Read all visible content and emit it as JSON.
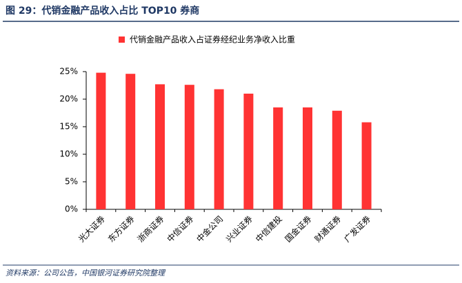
{
  "chart_data": {
    "type": "bar",
    "title": "图 29：代销金融产品收入占比 TOP10 券商",
    "source": "资料来源：公司公告，中国银河证券研究院整理",
    "categories": [
      "光大证券",
      "东方证券",
      "浙商证券",
      "中信证券",
      "中金公司",
      "兴业证券",
      "中信建投",
      "国金证券",
      "财通证券",
      "广发证券"
    ],
    "series": [
      {
        "name": "代销金融产品收入占证券经纪业务净收入比重",
        "color": "#ff3333",
        "values": [
          24.8,
          24.6,
          22.7,
          22.6,
          21.8,
          21.0,
          18.5,
          18.5,
          17.9,
          15.8
        ]
      }
    ],
    "ylim": [
      0,
      25
    ],
    "yticks": [
      {
        "value": 0,
        "label": "0%"
      },
      {
        "value": 5,
        "label": "5%"
      },
      {
        "value": 10,
        "label": "10%"
      },
      {
        "value": 15,
        "label": "15%"
      },
      {
        "value": 20,
        "label": "20%"
      },
      {
        "value": 25,
        "label": "25%"
      }
    ],
    "grid": false
  }
}
